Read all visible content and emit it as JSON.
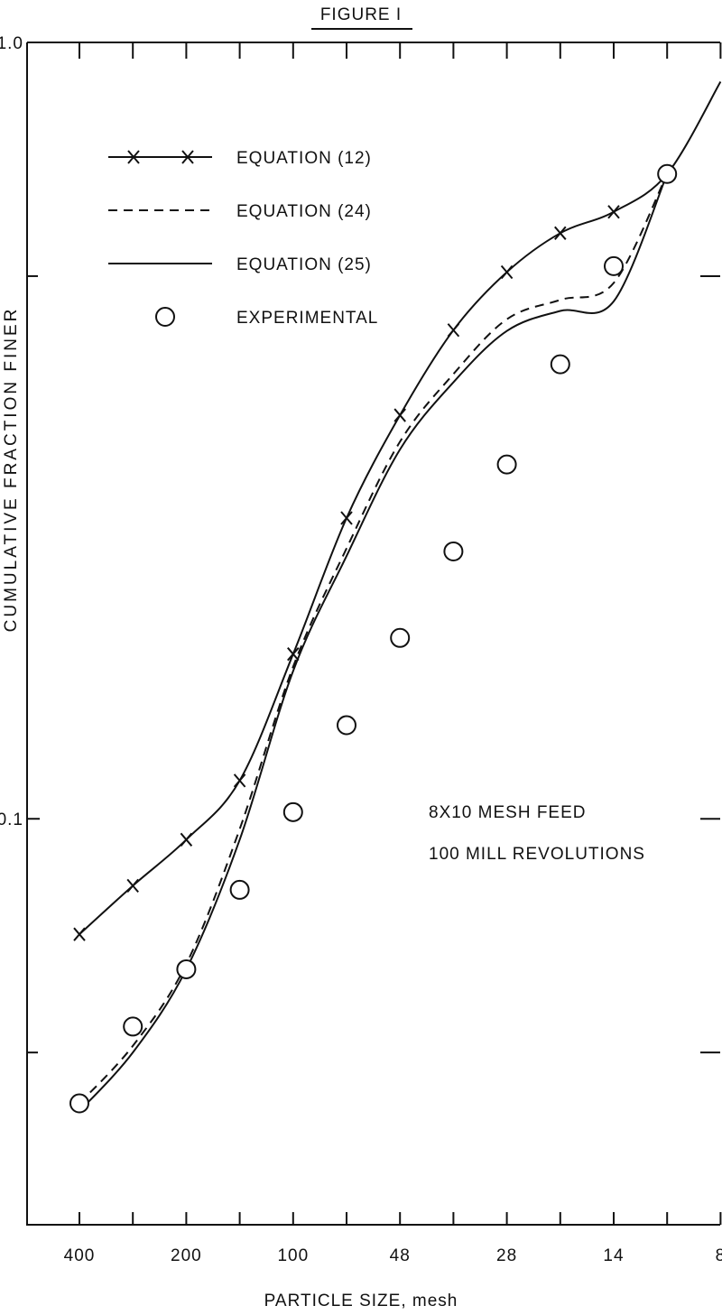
{
  "chart_data": {
    "type": "line",
    "title": "FIGURE I",
    "xlabel": "PARTICLE SIZE, mesh",
    "ylabel": "CUMULATIVE FRACTION FINER",
    "categories": [
      400,
      null,
      200,
      null,
      100,
      null,
      48,
      null,
      28,
      null,
      14,
      null,
      8
    ],
    "log_y": true,
    "ylim": [
      0.03,
      1.0
    ],
    "yticks": [
      {
        "value": 1.0,
        "label": "1.0"
      },
      0.1
    ],
    "minor_yticks": [
      0.5,
      0.05
    ],
    "series": [
      {
        "name": "EQUATION (12)",
        "color": "#111",
        "marker": "x",
        "dash": false,
        "values": [
          0.071,
          0.082,
          0.094,
          0.112,
          0.163,
          0.244,
          0.331,
          0.426,
          0.506,
          0.568,
          0.605,
          0.677,
          0.89
        ]
      },
      {
        "name": "EQUATION (24)",
        "color": "#111",
        "dash": true,
        "values": [
          0.043,
          0.051,
          0.065,
          0.097,
          0.157,
          0.223,
          0.306,
          0.374,
          0.44,
          0.466,
          0.49,
          0.677,
          null
        ]
      },
      {
        "name": "EQUATION (25)",
        "color": "#111",
        "dash": false,
        "values": [
          0.042,
          0.05,
          0.064,
          0.094,
          0.155,
          0.218,
          0.299,
          0.365,
          0.425,
          0.451,
          0.464,
          0.677,
          null
        ]
      },
      {
        "name": "EXPERIMENTAL",
        "color": "#111",
        "marker": "circle",
        "line": false,
        "values": [
          0.043,
          0.054,
          0.064,
          0.081,
          0.102,
          0.132,
          0.171,
          0.221,
          0.286,
          0.385,
          0.515,
          0.677,
          null
        ]
      }
    ],
    "annotations": [
      "8X10 MESH FEED",
      "100 MILL REVOLUTIONS"
    ]
  }
}
